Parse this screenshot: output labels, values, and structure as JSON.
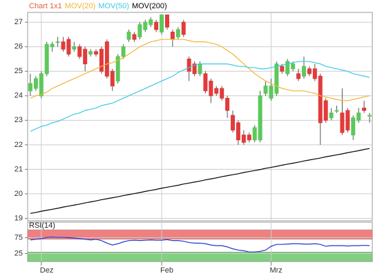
{
  "chart_data": [
    {
      "type": "candlestick",
      "name": "Chart 1x1",
      "name_color": "#e0603a",
      "up_color": "#5cc85c",
      "down_color": "#e23b3b",
      "open": [
        24.2,
        24.3,
        24.0,
        24.9,
        26.0,
        26.2,
        26.2,
        26.3,
        25.9,
        26.0,
        25.9,
        25.7,
        25.8,
        25.9,
        26.2,
        25.0,
        24.6,
        25.6,
        26.3,
        26.5,
        26.4,
        26.7,
        26.9,
        27.0,
        26.6,
        27.3,
        26.6,
        26.4,
        27.0,
        25.5,
        25.3,
        24.9,
        24.9,
        24.6,
        24.3,
        24.3,
        23.9,
        23.2,
        22.9,
        22.4,
        22.4,
        22.2,
        22.2,
        24.1,
        23.9,
        24.1,
        25.2,
        24.9,
        25.1,
        24.9,
        24.8,
        25.1,
        25.1,
        24.8,
        23.8,
        23.1,
        23.4,
        23.3,
        23.4,
        22.4,
        23.0,
        23.5,
        23.2
      ],
      "high": [
        24.9,
        24.8,
        25.0,
        26.2,
        26.2,
        26.4,
        26.4,
        26.4,
        26.2,
        26.1,
        26.0,
        25.9,
        25.9,
        26.0,
        26.3,
        25.1,
        25.7,
        26.1,
        26.7,
        26.6,
        27.0,
        27.1,
        27.2,
        27.1,
        27.3,
        27.3,
        26.7,
        26.8,
        27.1,
        25.6,
        25.4,
        25.4,
        25.0,
        24.7,
        24.4,
        24.4,
        24.0,
        23.4,
        23.0,
        22.6,
        22.5,
        22.8,
        24.2,
        24.6,
        24.7,
        25.4,
        25.3,
        25.5,
        25.4,
        25.1,
        25.6,
        25.2,
        25.3,
        24.9,
        23.9,
        23.5,
        23.6,
        24.3,
        23.5,
        23.2,
        23.5,
        23.8,
        23.3
      ],
      "low": [
        24.0,
        24.2,
        23.9,
        24.8,
        25.8,
        26.0,
        25.8,
        25.6,
        25.8,
        25.5,
        25.0,
        25.6,
        25.6,
        24.9,
        24.7,
        24.2,
        24.5,
        25.5,
        26.2,
        26.2,
        26.3,
        26.6,
        26.8,
        26.6,
        26.5,
        26.7,
        26.0,
        26.3,
        26.4,
        24.6,
        24.8,
        24.8,
        24.1,
        23.7,
        24.0,
        23.8,
        23.1,
        22.5,
        22.0,
        22.0,
        22.1,
        22.1,
        22.1,
        24.0,
        23.8,
        24.0,
        24.9,
        24.8,
        25.0,
        24.6,
        24.7,
        24.8,
        24.6,
        22.0,
        22.9,
        23.0,
        23.3,
        22.4,
        22.5,
        22.2,
        22.9,
        23.3,
        22.9
      ],
      "close": [
        24.5,
        24.7,
        24.9,
        26.1,
        26.1,
        26.2,
        25.9,
        25.7,
        26.0,
        25.6,
        25.3,
        25.8,
        25.7,
        25.0,
        24.8,
        24.4,
        25.6,
        26.0,
        26.6,
        26.3,
        26.9,
        27.0,
        27.1,
        26.7,
        27.3,
        26.8,
        26.3,
        26.7,
        26.5,
        25.0,
        24.9,
        25.3,
        24.2,
        24.0,
        24.1,
        23.9,
        23.4,
        22.6,
        22.2,
        22.1,
        22.2,
        22.7,
        24.0,
        24.4,
        24.4,
        25.3,
        25.0,
        25.4,
        25.3,
        24.7,
        25.2,
        24.9,
        24.7,
        22.9,
        23.0,
        23.3,
        23.4,
        22.5,
        22.6,
        23.1,
        23.3,
        23.4,
        23.2
      ],
      "series": [
        {
          "name": "MOV(20)",
          "color": "#f2b533",
          "values": [
            23.9,
            24.0,
            24.05,
            24.15,
            24.3,
            24.4,
            24.5,
            24.6,
            24.7,
            24.8,
            24.9,
            25.0,
            25.1,
            25.2,
            25.3,
            25.35,
            25.45,
            25.55,
            25.7,
            25.85,
            26.0,
            26.1,
            26.2,
            26.25,
            26.3,
            26.3,
            26.3,
            26.3,
            26.3,
            26.25,
            26.2,
            26.2,
            26.2,
            26.15,
            26.1,
            26.0,
            25.85,
            25.7,
            25.5,
            25.3,
            25.1,
            24.9,
            24.75,
            24.6,
            24.5,
            24.4,
            24.3,
            24.25,
            24.2,
            24.2,
            24.2,
            24.15,
            24.1,
            24.0,
            23.95,
            23.9,
            23.85,
            23.8,
            23.8,
            23.85,
            23.9,
            23.95,
            24.0
          ]
        },
        {
          "name": "MOV(50)",
          "color": "#3cc8e6",
          "values": [
            22.55,
            22.65,
            22.75,
            22.8,
            22.9,
            22.95,
            23.05,
            23.15,
            23.25,
            23.3,
            23.4,
            23.45,
            23.5,
            23.6,
            23.65,
            23.7,
            23.8,
            23.9,
            24.0,
            24.1,
            24.2,
            24.3,
            24.4,
            24.5,
            24.6,
            24.7,
            24.8,
            24.95,
            25.05,
            25.15,
            25.25,
            25.3,
            25.3,
            25.3,
            25.3,
            25.3,
            25.3,
            25.25,
            25.2,
            25.2,
            25.15,
            25.15,
            25.1,
            25.1,
            25.15,
            25.2,
            25.25,
            25.3,
            25.35,
            25.4,
            25.4,
            25.4,
            25.35,
            25.3,
            25.2,
            25.15,
            25.1,
            25.05,
            25.0,
            24.9,
            24.85,
            24.8,
            24.75
          ]
        },
        {
          "name": "MOV(200)",
          "color": "#000000",
          "values": [
            19.2,
            19.24,
            19.29,
            19.33,
            19.37,
            19.41,
            19.46,
            19.5,
            19.54,
            19.58,
            19.63,
            19.67,
            19.71,
            19.76,
            19.8,
            19.84,
            19.88,
            19.93,
            19.97,
            20.01,
            20.05,
            20.1,
            20.14,
            20.18,
            20.23,
            20.27,
            20.31,
            20.35,
            20.4,
            20.44,
            20.48,
            20.52,
            20.57,
            20.61,
            20.65,
            20.7,
            20.74,
            20.78,
            20.82,
            20.87,
            20.91,
            20.95,
            20.99,
            21.04,
            21.08,
            21.12,
            21.17,
            21.21,
            21.25,
            21.29,
            21.34,
            21.38,
            21.42,
            21.46,
            21.51,
            21.55,
            21.59,
            21.63,
            21.68,
            21.72,
            21.76,
            21.81,
            21.85
          ]
        }
      ],
      "ylim": [
        18.9,
        27.4
      ],
      "yticks": [
        19,
        20,
        21,
        22,
        23,
        24,
        25,
        26,
        27
      ],
      "xlim": [
        -0.5,
        62.5
      ],
      "xticks": [
        {
          "value": 2,
          "label": "Dez"
        },
        {
          "value": 24,
          "label": "Feb"
        },
        {
          "value": 44,
          "label": "Mrz"
        }
      ],
      "grid": true
    },
    {
      "type": "line",
      "series": [
        {
          "name": "RSI(14)",
          "color": "#2233cc",
          "values": [
            68,
            70,
            72,
            76,
            77,
            76,
            76,
            75,
            74,
            72,
            70,
            68,
            70,
            66,
            58,
            52,
            56,
            62,
            66,
            67,
            66,
            67,
            68,
            67,
            67,
            69,
            66,
            66,
            64,
            60,
            58,
            58,
            56,
            52,
            50,
            50,
            46,
            40,
            36,
            34,
            30,
            30,
            32,
            36,
            48,
            54,
            54,
            55,
            56,
            56,
            55,
            55,
            56,
            54,
            48,
            50,
            50,
            50,
            49,
            50,
            50,
            51,
            50
          ]
        }
      ],
      "bands": [
        {
          "from": 70,
          "to": 100,
          "color": "#f08080"
        },
        {
          "from": 0,
          "to": 30,
          "color": "#80d080"
        }
      ],
      "ylim": [
        0,
        124
      ],
      "yticks": [
        25,
        75
      ],
      "xlim": [
        -0.5,
        62.5
      ],
      "grid": true
    }
  ]
}
